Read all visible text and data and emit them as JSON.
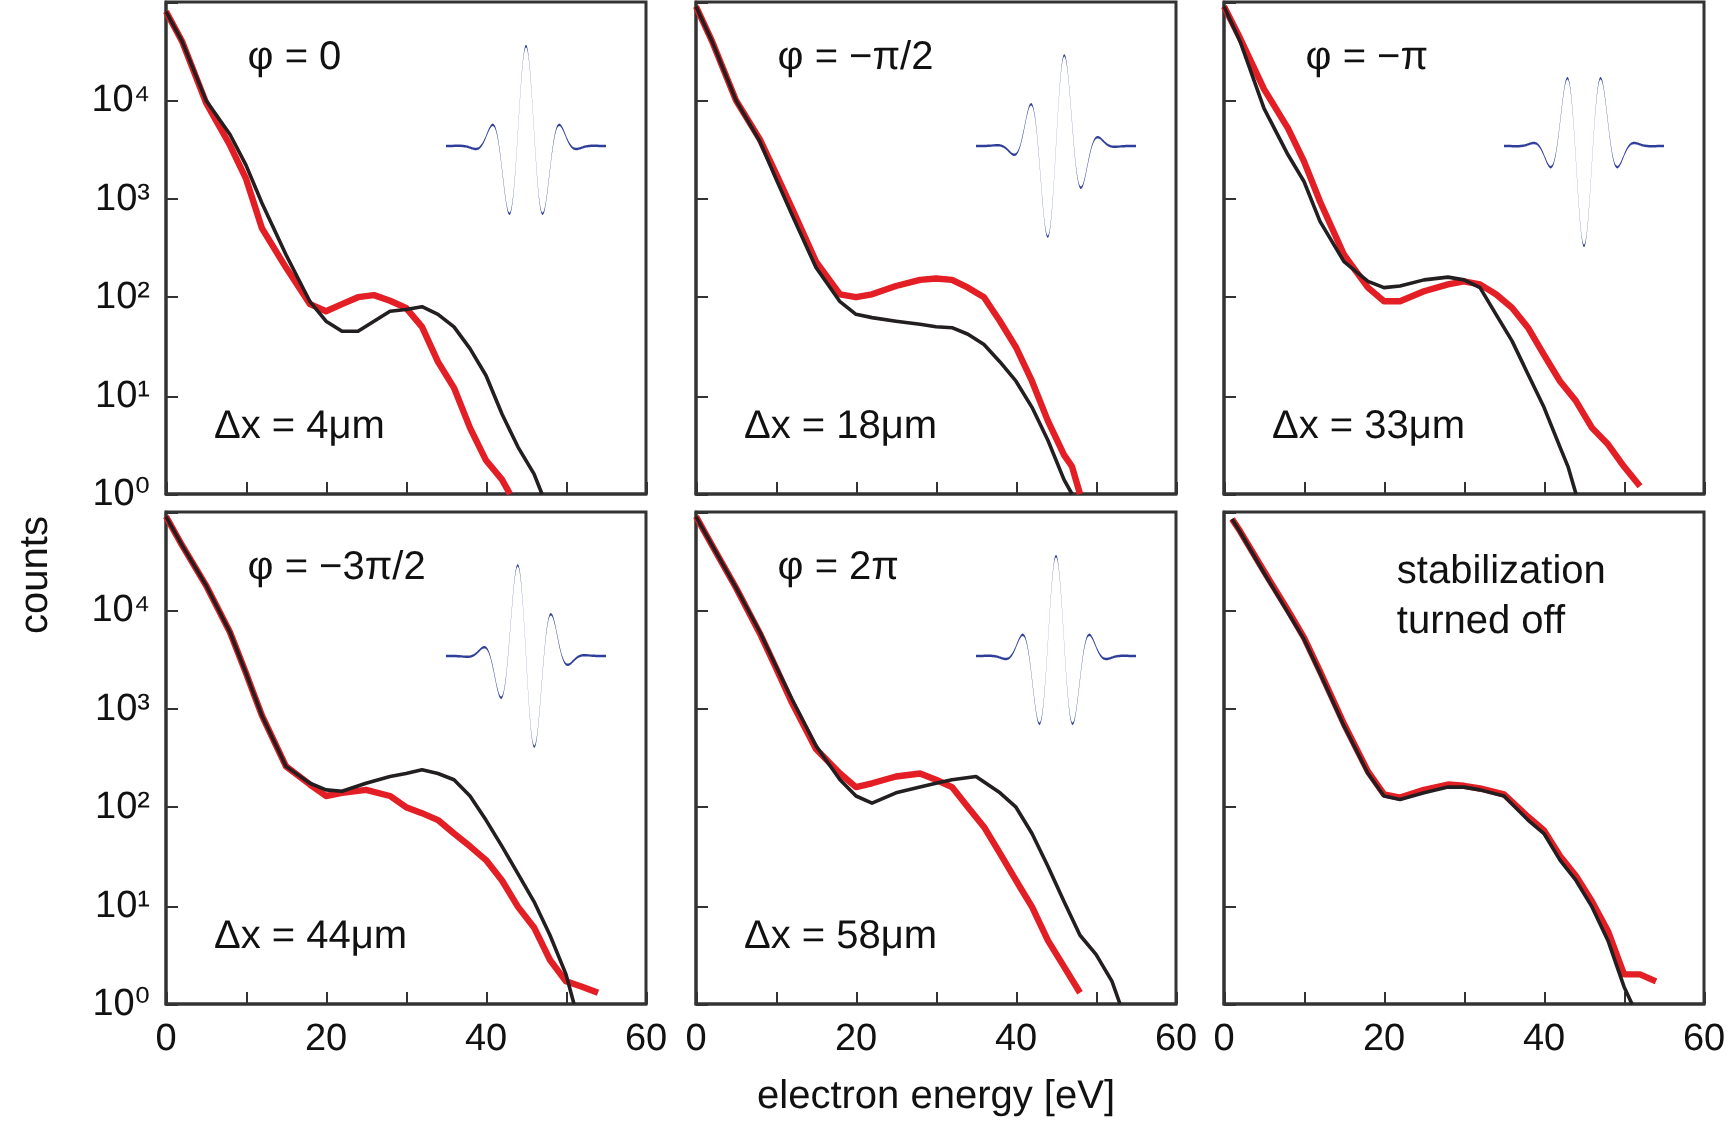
{
  "chart_data": [
    {
      "type": "line",
      "log": "y",
      "grid": false,
      "tick_labels": "y",
      "xlim": [
        0,
        60
      ],
      "ylim": [
        1,
        100000
      ],
      "xticks": [
        0,
        {
          "value": 10,
          "label": null
        },
        20,
        {
          "value": 30,
          "label": null
        },
        40,
        {
          "value": 50,
          "label": null
        },
        60
      ],
      "yticks": [
        {
          "value": 1,
          "label": "10⁰"
        },
        {
          "value": 10,
          "label": "10¹"
        },
        {
          "value": 100,
          "label": "10²"
        },
        {
          "value": 1000,
          "label": "10³"
        },
        {
          "value": 10000,
          "label": "10⁴"
        },
        {
          "value": 100000,
          "label": null
        }
      ],
      "annotations": [
        "φ = 0",
        "Δx = 4μm"
      ],
      "series": [
        {
          "color": "#e31e24",
          "x": [
            0,
            2,
            5,
            8,
            10,
            12,
            15,
            18,
            20,
            22,
            24,
            26,
            28,
            30,
            32,
            34,
            36,
            38,
            40,
            42,
            43
          ],
          "values": [
            80000,
            40000,
            9500,
            3500,
            1600,
            500,
            200,
            85,
            72,
            85,
            100,
            105,
            92,
            78,
            50,
            22,
            12,
            4.7,
            2.2,
            1.4,
            1
          ]
        },
        {
          "color": "#231f20",
          "x": [
            0,
            2,
            5,
            8,
            10,
            12,
            15,
            18,
            20,
            22,
            24,
            26,
            28,
            30,
            32,
            34,
            36,
            38,
            40,
            42,
            44,
            46,
            47
          ],
          "values": [
            80000,
            40000,
            10000,
            4500,
            2200,
            900,
            270,
            90,
            57,
            45,
            45,
            57,
            72,
            75,
            80,
            67,
            50,
            30,
            16,
            6.5,
            3,
            1.6,
            1
          ]
        }
      ]
    },
    {
      "type": "line",
      "log": "y",
      "grid": false,
      "tick_labels": false,
      "xlim": [
        0,
        60
      ],
      "ylim": [
        1,
        100000
      ],
      "xticks": [
        0,
        {
          "value": 10,
          "label": null
        },
        20,
        {
          "value": 30,
          "label": null
        },
        40,
        {
          "value": 50,
          "label": null
        },
        60
      ],
      "yticks": [
        {
          "value": 1,
          "label": "10⁰"
        },
        {
          "value": 10,
          "label": "10¹"
        },
        {
          "value": 100,
          "label": "10²"
        },
        {
          "value": 1000,
          "label": "10³"
        },
        {
          "value": 10000,
          "label": "10⁴"
        },
        {
          "value": 100000,
          "label": null
        }
      ],
      "annotations": [
        "φ = −π/2",
        "Δx = 18μm"
      ],
      "series": [
        {
          "color": "#e31e24",
          "x": [
            0,
            2,
            5,
            8,
            10,
            12,
            15,
            18,
            20,
            22,
            25,
            28,
            30,
            32,
            34,
            36,
            38,
            40,
            42,
            44,
            46,
            47,
            48
          ],
          "values": [
            90000,
            40000,
            10000,
            4000,
            1800,
            800,
            230,
            107,
            100,
            107,
            130,
            150,
            155,
            150,
            125,
            100,
            57,
            31,
            14,
            5.5,
            2.5,
            1.9,
            1
          ]
        },
        {
          "color": "#231f20",
          "x": [
            0,
            2,
            5,
            8,
            10,
            12,
            15,
            18,
            20,
            22,
            25,
            28,
            30,
            32,
            34,
            36,
            38,
            40,
            42,
            44,
            46,
            47
          ],
          "values": [
            90000,
            40000,
            10000,
            3800,
            1600,
            690,
            200,
            90,
            67,
            62,
            57,
            53,
            50,
            49,
            42,
            33,
            22,
            14,
            7.6,
            3.5,
            1.4,
            1
          ]
        }
      ]
    },
    {
      "type": "line",
      "log": "y",
      "grid": false,
      "tick_labels": false,
      "xlim": [
        0,
        60
      ],
      "ylim": [
        1,
        100000
      ],
      "xticks": [
        0,
        {
          "value": 10,
          "label": null
        },
        20,
        {
          "value": 30,
          "label": null
        },
        40,
        {
          "value": 50,
          "label": null
        },
        60
      ],
      "yticks": [
        {
          "value": 1,
          "label": "10⁰"
        },
        {
          "value": 10,
          "label": "10¹"
        },
        {
          "value": 100,
          "label": "10²"
        },
        {
          "value": 1000,
          "label": "10³"
        },
        {
          "value": 10000,
          "label": "10⁴"
        },
        {
          "value": 100000,
          "label": null
        }
      ],
      "annotations": [
        "φ = −π",
        "Δx = 33μm"
      ],
      "series": [
        {
          "color": "#e31e24",
          "x": [
            0,
            2,
            5,
            8,
            10,
            12,
            15,
            18,
            20,
            22,
            25,
            28,
            30,
            32,
            34,
            36,
            38,
            40,
            42,
            44,
            46,
            48,
            50,
            52
          ],
          "values": [
            90000,
            43000,
            13000,
            5200,
            2400,
            940,
            270,
            125,
            91,
            91,
            115,
            135,
            145,
            135,
            107,
            78,
            49,
            26,
            14,
            8.8,
            4.7,
            3.2,
            1.9,
            1.2
          ]
        },
        {
          "color": "#231f20",
          "x": [
            0,
            2,
            5,
            8,
            10,
            12,
            15,
            18,
            20,
            22,
            25,
            28,
            30,
            32,
            34,
            36,
            38,
            40,
            42,
            43,
            44
          ],
          "values": [
            90000,
            40000,
            8300,
            2800,
            1500,
            590,
            230,
            145,
            125,
            130,
            150,
            160,
            150,
            125,
            67,
            36,
            16.5,
            7.6,
            3,
            1.9,
            1
          ]
        }
      ]
    },
    {
      "type": "line",
      "log": "y",
      "grid": false,
      "xlim": [
        0,
        60
      ],
      "ylim": [
        1,
        100000
      ],
      "xticks": [
        0,
        {
          "value": 10,
          "label": null
        },
        20,
        {
          "value": 30,
          "label": null
        },
        40,
        {
          "value": 50,
          "label": null
        },
        60
      ],
      "yticks": [
        {
          "value": 1,
          "label": "10⁰"
        },
        {
          "value": 10,
          "label": "10¹"
        },
        {
          "value": 100,
          "label": "10²"
        },
        {
          "value": 1000,
          "label": "10³"
        },
        {
          "value": 10000,
          "label": "10⁴"
        },
        {
          "value": 100000,
          "label": null
        }
      ],
      "ylabel": "counts",
      "annotations": [
        "φ = −3π/2",
        "Δx = 44μm"
      ],
      "series": [
        {
          "color": "#e31e24",
          "x": [
            0,
            2,
            5,
            8,
            10,
            12,
            15,
            18,
            20,
            22,
            25,
            28,
            30,
            32,
            34,
            36,
            38,
            40,
            42,
            44,
            46,
            48,
            50,
            52,
            54
          ],
          "values": [
            90000,
            46000,
            18000,
            6000,
            2300,
            850,
            260,
            170,
            130,
            140,
            150,
            130,
            100,
            87,
            74,
            54,
            40,
            29,
            18,
            9.7,
            6,
            2.8,
            1.7,
            1.5,
            1.3
          ]
        },
        {
          "color": "#231f20",
          "x": [
            0,
            2,
            5,
            8,
            10,
            12,
            15,
            18,
            20,
            22,
            25,
            28,
            30,
            32,
            34,
            36,
            38,
            40,
            42,
            44,
            46,
            48,
            50,
            51
          ],
          "values": [
            90000,
            46000,
            18000,
            6000,
            2300,
            850,
            260,
            175,
            150,
            145,
            175,
            205,
            220,
            240,
            220,
            190,
            130,
            74,
            40,
            21,
            11,
            5,
            2,
            1
          ]
        }
      ]
    },
    {
      "type": "line",
      "log": "y",
      "grid": false,
      "tick_labels": "x",
      "xlim": [
        0,
        60
      ],
      "ylim": [
        1,
        100000
      ],
      "xticks": [
        0,
        {
          "value": 10,
          "label": null
        },
        20,
        {
          "value": 30,
          "label": null
        },
        40,
        {
          "value": 50,
          "label": null
        },
        60
      ],
      "yticks": [
        {
          "value": 1,
          "label": "10⁰"
        },
        {
          "value": 10,
          "label": "10¹"
        },
        {
          "value": 100,
          "label": "10²"
        },
        {
          "value": 1000,
          "label": "10³"
        },
        {
          "value": 10000,
          "label": "10⁴"
        },
        {
          "value": 100000,
          "label": null
        }
      ],
      "xlabel": "electron energy [eV]",
      "annotations": [
        "φ = 2π",
        "Δx = 58μm"
      ],
      "series": [
        {
          "color": "#e31e24",
          "x": [
            0,
            2,
            5,
            8,
            10,
            12,
            15,
            18,
            20,
            22,
            25,
            28,
            30,
            32,
            34,
            36,
            38,
            40,
            42,
            44,
            46,
            48
          ],
          "values": [
            90000,
            46000,
            17000,
            5800,
            2600,
            1150,
            390,
            220,
            160,
            175,
            205,
            220,
            190,
            160,
            100,
            63,
            34,
            18,
            9.7,
            4.4,
            2.4,
            1.3
          ]
        },
        {
          "color": "#231f20",
          "x": [
            0,
            2,
            5,
            8,
            10,
            12,
            15,
            18,
            20,
            22,
            25,
            28,
            30,
            32,
            35,
            38,
            40,
            42,
            44,
            46,
            48,
            50,
            52,
            53
          ],
          "values": [
            90000,
            46000,
            17000,
            6000,
            2700,
            1250,
            420,
            190,
            130,
            110,
            140,
            160,
            175,
            190,
            205,
            140,
            100,
            54,
            25,
            11,
            5,
            3.2,
            1.7,
            1
          ]
        }
      ]
    },
    {
      "type": "line",
      "log": "y",
      "grid": false,
      "tick_labels": "x",
      "xlim": [
        0,
        60
      ],
      "ylim": [
        1,
        100000
      ],
      "xticks": [
        0,
        {
          "value": 10,
          "label": null
        },
        20,
        {
          "value": 30,
          "label": null
        },
        40,
        {
          "value": 50,
          "label": null
        },
        60
      ],
      "yticks": [
        {
          "value": 1,
          "label": "10⁰"
        },
        {
          "value": 10,
          "label": "10¹"
        },
        {
          "value": 100,
          "label": "10²"
        },
        {
          "value": 1000,
          "label": "10³"
        },
        {
          "value": 10000,
          "label": "10⁴"
        },
        {
          "value": 100000,
          "label": null
        }
      ],
      "annotations": [
        "stabilization turned off"
      ],
      "series": [
        {
          "color": "#e31e24",
          "x": [
            1,
            2,
            5,
            8,
            10,
            12,
            15,
            18,
            20,
            22,
            25,
            28,
            30,
            32,
            35,
            38,
            40,
            42,
            44,
            46,
            48,
            50,
            52,
            54
          ],
          "values": [
            85000,
            64000,
            25000,
            10000,
            5300,
            2400,
            700,
            230,
            135,
            125,
            150,
            170,
            165,
            155,
            135,
            80,
            58,
            32,
            20,
            11,
            5.5,
            2,
            2,
            1.7
          ]
        },
        {
          "color": "#231f20",
          "x": [
            1,
            2,
            5,
            8,
            10,
            12,
            15,
            18,
            20,
            22,
            25,
            28,
            30,
            32,
            35,
            38,
            40,
            42,
            44,
            46,
            48,
            50,
            51
          ],
          "values": [
            85000,
            63000,
            24000,
            9500,
            5100,
            2300,
            670,
            220,
            130,
            120,
            140,
            160,
            160,
            150,
            130,
            74,
            54,
            29,
            18,
            9.7,
            4.4,
            1.5,
            1
          ]
        }
      ]
    }
  ]
}
